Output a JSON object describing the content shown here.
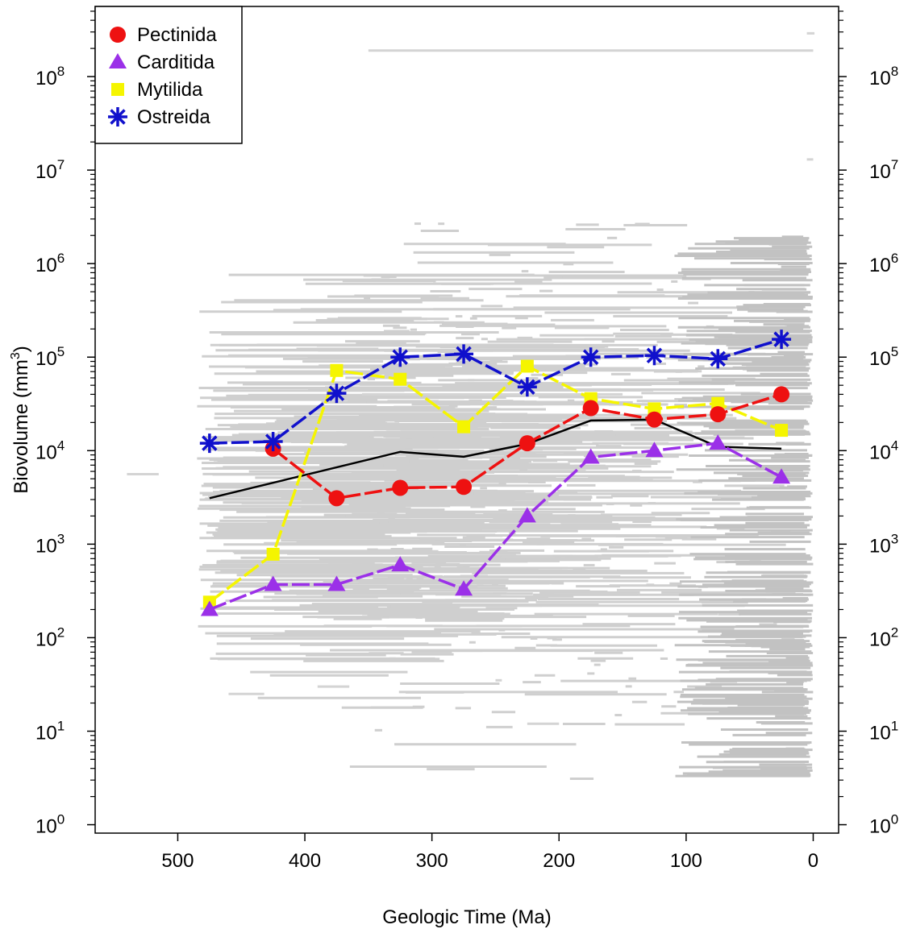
{
  "chart_data": {
    "type": "line",
    "x_label": "Geologic Time (Ma)",
    "y_label_main": "Biovolume (mm",
    "y_label_sup": "3",
    "y_label_close": ")",
    "x_ticks": [
      500,
      400,
      300,
      200,
      100,
      0
    ],
    "x_tick_labels": [
      "500",
      "400",
      "300",
      "200",
      "100",
      "0"
    ],
    "xlim": [
      565,
      -20
    ],
    "y_scale": "log",
    "y_ticks_exp": [
      0,
      1,
      2,
      3,
      4,
      5,
      6,
      7,
      8
    ],
    "y_tick_base": "10",
    "y_tick_exps": [
      "0",
      "1",
      "2",
      "3",
      "4",
      "5",
      "6",
      "7",
      "8"
    ],
    "ylim_log10": [
      -0.09,
      8.75
    ],
    "legend_position": "top-left",
    "colors": {
      "Pectinida": "#ee1111",
      "Carditida": "#9b30e8",
      "Mytilida": "#f5f500",
      "Ostreida": "#1010cc",
      "mean": "#000000",
      "background": "#c8c8c8"
    },
    "series": [
      {
        "name": "Pectinida",
        "marker": "circle",
        "x": [
          425,
          375,
          325,
          275,
          225,
          175,
          125,
          75,
          25
        ],
        "y": [
          10500,
          3100,
          4000,
          4100,
          12000,
          28500,
          21500,
          24500,
          40000
        ]
      },
      {
        "name": "Carditida",
        "marker": "triangle",
        "x": [
          475,
          425,
          375,
          325,
          275,
          225,
          175,
          125,
          75,
          25
        ],
        "y": [
          200,
          370,
          370,
          600,
          330,
          2000,
          8500,
          10000,
          12000,
          5200
        ]
      },
      {
        "name": "Mytilida",
        "marker": "square",
        "x": [
          475,
          425,
          375,
          325,
          275,
          225,
          175,
          125,
          75,
          25
        ],
        "y": [
          240,
          780,
          72000,
          58000,
          18000,
          80000,
          36000,
          28000,
          32000,
          16500
        ]
      },
      {
        "name": "Ostreida",
        "marker": "asterisk",
        "x": [
          475,
          425,
          375,
          325,
          275,
          225,
          175,
          125,
          75,
          25
        ],
        "y": [
          12000,
          12500,
          41000,
          100000,
          108000,
          48000,
          100000,
          104000,
          96000,
          155000
        ]
      },
      {
        "name": "",
        "marker": "none",
        "x": [
          475,
          325,
          275,
          225,
          175,
          125,
          75,
          25
        ],
        "y": [
          3100,
          9700,
          8600,
          11800,
          21000,
          21500,
          11000,
          10500
        ]
      }
    ]
  }
}
